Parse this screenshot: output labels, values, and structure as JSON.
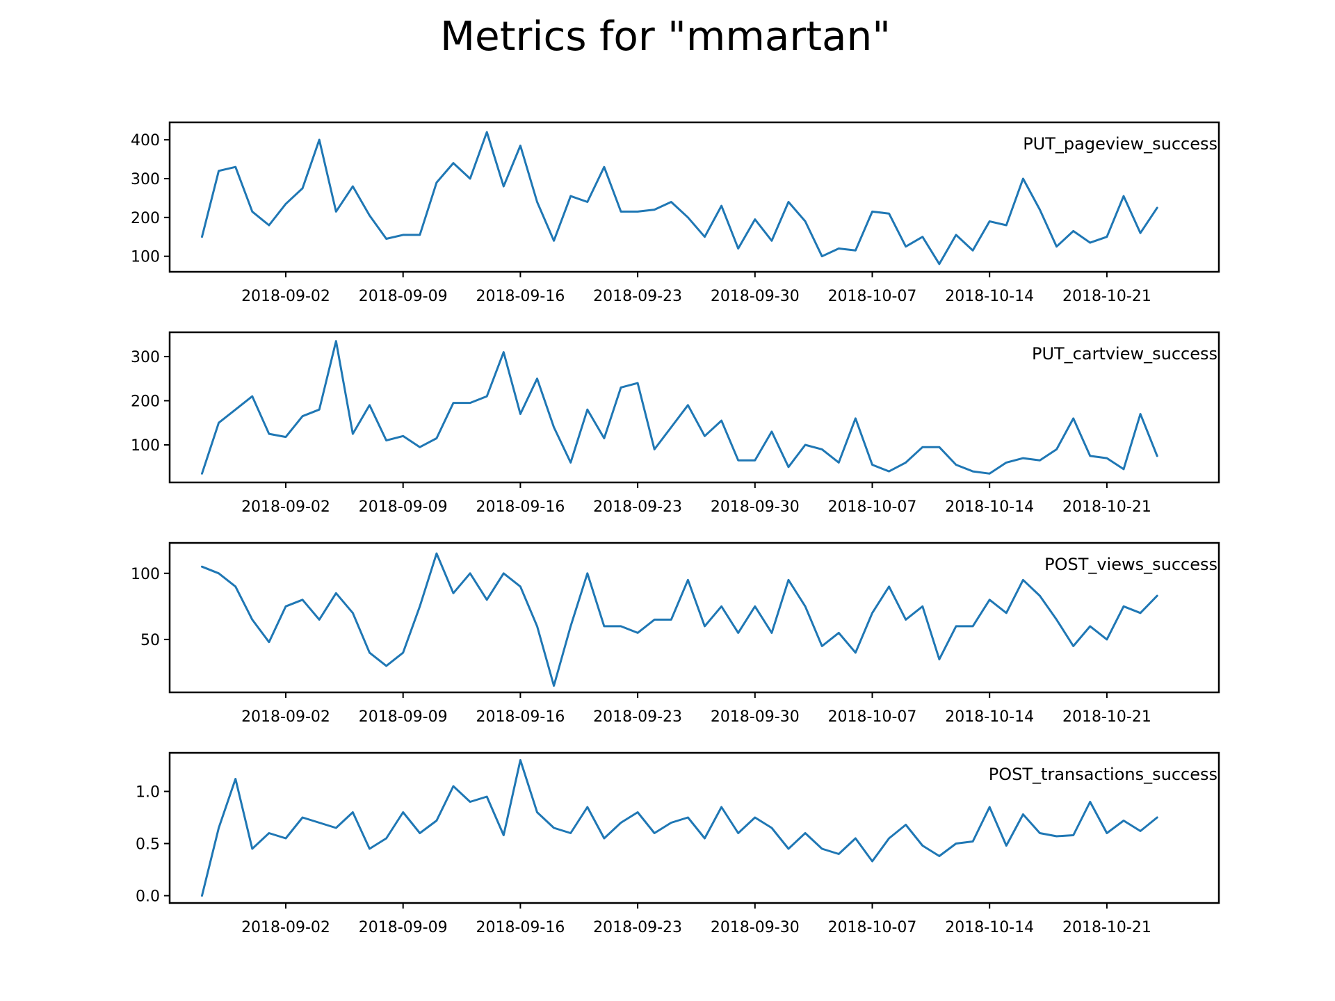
{
  "title": "Metrics for \"mmartan\"",
  "line_color": "#1f77b4",
  "chart_data": [
    {
      "type": "line",
      "series": [
        {
          "name": "PUT_pageview_success",
          "x": [
            "2018-08-28",
            "2018-08-29",
            "2018-08-30",
            "2018-08-31",
            "2018-09-01",
            "2018-09-02",
            "2018-09-03",
            "2018-09-04",
            "2018-09-05",
            "2018-09-06",
            "2018-09-07",
            "2018-09-08",
            "2018-09-09",
            "2018-09-10",
            "2018-09-11",
            "2018-09-12",
            "2018-09-13",
            "2018-09-14",
            "2018-09-15",
            "2018-09-16",
            "2018-09-17",
            "2018-09-18",
            "2018-09-19",
            "2018-09-20",
            "2018-09-21",
            "2018-09-22",
            "2018-09-23",
            "2018-09-24",
            "2018-09-25",
            "2018-09-26",
            "2018-09-27",
            "2018-09-28",
            "2018-09-29",
            "2018-09-30",
            "2018-10-01",
            "2018-10-02",
            "2018-10-03",
            "2018-10-04",
            "2018-10-05",
            "2018-10-06",
            "2018-10-07",
            "2018-10-08",
            "2018-10-09",
            "2018-10-10",
            "2018-10-11",
            "2018-10-12",
            "2018-10-13",
            "2018-10-14",
            "2018-10-15",
            "2018-10-16",
            "2018-10-17",
            "2018-10-18",
            "2018-10-19",
            "2018-10-20",
            "2018-10-21",
            "2018-10-22",
            "2018-10-23",
            "2018-10-24"
          ],
          "values": [
            150,
            320,
            330,
            215,
            180,
            235,
            275,
            400,
            215,
            280,
            205,
            145,
            155,
            155,
            290,
            340,
            300,
            420,
            280,
            385,
            240,
            140,
            255,
            240,
            330,
            215,
            215,
            220,
            240,
            200,
            150,
            230,
            120,
            195,
            140,
            240,
            190,
            100,
            120,
            115,
            215,
            210,
            125,
            150,
            80,
            155,
            115,
            190,
            180,
            300,
            220,
            125,
            165,
            135,
            150,
            255,
            160,
            225
          ]
        }
      ],
      "x_ticks": [
        "2018-09-02",
        "2018-09-09",
        "2018-09-16",
        "2018-09-23",
        "2018-09-30",
        "2018-10-07",
        "2018-10-14",
        "2018-10-21"
      ],
      "y_ticks": [
        "100",
        "200",
        "300",
        "400"
      ],
      "ylim": [
        60,
        445
      ]
    },
    {
      "type": "line",
      "series": [
        {
          "name": "PUT_cartview_success",
          "x": [
            "2018-08-28",
            "2018-08-29",
            "2018-08-30",
            "2018-08-31",
            "2018-09-01",
            "2018-09-02",
            "2018-09-03",
            "2018-09-04",
            "2018-09-05",
            "2018-09-06",
            "2018-09-07",
            "2018-09-08",
            "2018-09-09",
            "2018-09-10",
            "2018-09-11",
            "2018-09-12",
            "2018-09-13",
            "2018-09-14",
            "2018-09-15",
            "2018-09-16",
            "2018-09-17",
            "2018-09-18",
            "2018-09-19",
            "2018-09-20",
            "2018-09-21",
            "2018-09-22",
            "2018-09-23",
            "2018-09-24",
            "2018-09-25",
            "2018-09-26",
            "2018-09-27",
            "2018-09-28",
            "2018-09-29",
            "2018-09-30",
            "2018-10-01",
            "2018-10-02",
            "2018-10-03",
            "2018-10-04",
            "2018-10-05",
            "2018-10-06",
            "2018-10-07",
            "2018-10-08",
            "2018-10-09",
            "2018-10-10",
            "2018-10-11",
            "2018-10-12",
            "2018-10-13",
            "2018-10-14",
            "2018-10-15",
            "2018-10-16",
            "2018-10-17",
            "2018-10-18",
            "2018-10-19",
            "2018-10-20",
            "2018-10-21",
            "2018-10-22",
            "2018-10-23",
            "2018-10-24"
          ],
          "values": [
            35,
            150,
            180,
            210,
            125,
            118,
            165,
            180,
            335,
            125,
            190,
            110,
            120,
            95,
            115,
            195,
            195,
            210,
            310,
            170,
            250,
            140,
            60,
            180,
            115,
            230,
            240,
            90,
            140,
            190,
            120,
            155,
            65,
            65,
            130,
            50,
            100,
            90,
            60,
            160,
            55,
            40,
            60,
            95,
            95,
            55,
            40,
            35,
            60,
            70,
            65,
            90,
            160,
            75,
            70,
            45,
            170,
            75
          ]
        }
      ],
      "x_ticks": [
        "2018-09-02",
        "2018-09-09",
        "2018-09-16",
        "2018-09-23",
        "2018-09-30",
        "2018-10-07",
        "2018-10-14",
        "2018-10-21"
      ],
      "y_ticks": [
        "100",
        "200",
        "300"
      ],
      "ylim": [
        15,
        355
      ]
    },
    {
      "type": "line",
      "series": [
        {
          "name": "POST_views_success",
          "x": [
            "2018-08-28",
            "2018-08-29",
            "2018-08-30",
            "2018-08-31",
            "2018-09-01",
            "2018-09-02",
            "2018-09-03",
            "2018-09-04",
            "2018-09-05",
            "2018-09-06",
            "2018-09-07",
            "2018-09-08",
            "2018-09-09",
            "2018-09-10",
            "2018-09-11",
            "2018-09-12",
            "2018-09-13",
            "2018-09-14",
            "2018-09-15",
            "2018-09-16",
            "2018-09-17",
            "2018-09-18",
            "2018-09-19",
            "2018-09-20",
            "2018-09-21",
            "2018-09-22",
            "2018-09-23",
            "2018-09-24",
            "2018-09-25",
            "2018-09-26",
            "2018-09-27",
            "2018-09-28",
            "2018-09-29",
            "2018-09-30",
            "2018-10-01",
            "2018-10-02",
            "2018-10-03",
            "2018-10-04",
            "2018-10-05",
            "2018-10-06",
            "2018-10-07",
            "2018-10-08",
            "2018-10-09",
            "2018-10-10",
            "2018-10-11",
            "2018-10-12",
            "2018-10-13",
            "2018-10-14",
            "2018-10-15",
            "2018-10-16",
            "2018-10-17",
            "2018-10-18",
            "2018-10-19",
            "2018-10-20",
            "2018-10-21",
            "2018-10-22",
            "2018-10-23",
            "2018-10-24"
          ],
          "values": [
            105,
            100,
            90,
            65,
            48,
            75,
            80,
            65,
            85,
            70,
            40,
            30,
            40,
            75,
            115,
            85,
            100,
            80,
            100,
            90,
            60,
            15,
            60,
            100,
            60,
            60,
            55,
            65,
            65,
            95,
            60,
            75,
            55,
            75,
            55,
            95,
            75,
            45,
            55,
            40,
            70,
            90,
            65,
            75,
            35,
            60,
            60,
            80,
            70,
            95,
            83,
            65,
            45,
            60,
            50,
            75,
            70,
            83
          ]
        }
      ],
      "x_ticks": [
        "2018-09-02",
        "2018-09-09",
        "2018-09-16",
        "2018-09-23",
        "2018-09-30",
        "2018-10-07",
        "2018-10-14",
        "2018-10-21"
      ],
      "y_ticks": [
        "50",
        "100"
      ],
      "ylim": [
        10,
        123
      ]
    },
    {
      "type": "line",
      "series": [
        {
          "name": "POST_transactions_success",
          "x": [
            "2018-08-28",
            "2018-08-29",
            "2018-08-30",
            "2018-08-31",
            "2018-09-01",
            "2018-09-02",
            "2018-09-03",
            "2018-09-04",
            "2018-09-05",
            "2018-09-06",
            "2018-09-07",
            "2018-09-08",
            "2018-09-09",
            "2018-09-10",
            "2018-09-11",
            "2018-09-12",
            "2018-09-13",
            "2018-09-14",
            "2018-09-15",
            "2018-09-16",
            "2018-09-17",
            "2018-09-18",
            "2018-09-19",
            "2018-09-20",
            "2018-09-21",
            "2018-09-22",
            "2018-09-23",
            "2018-09-24",
            "2018-09-25",
            "2018-09-26",
            "2018-09-27",
            "2018-09-28",
            "2018-09-29",
            "2018-09-30",
            "2018-10-01",
            "2018-10-02",
            "2018-10-03",
            "2018-10-04",
            "2018-10-05",
            "2018-10-06",
            "2018-10-07",
            "2018-10-08",
            "2018-10-09",
            "2018-10-10",
            "2018-10-11",
            "2018-10-12",
            "2018-10-13",
            "2018-10-14",
            "2018-10-15",
            "2018-10-16",
            "2018-10-17",
            "2018-10-18",
            "2018-10-19",
            "2018-10-20",
            "2018-10-21",
            "2018-10-22",
            "2018-10-23",
            "2018-10-24"
          ],
          "values": [
            0.0,
            0.65,
            1.12,
            0.45,
            0.6,
            0.55,
            0.75,
            0.7,
            0.65,
            0.8,
            0.45,
            0.55,
            0.8,
            0.6,
            0.72,
            1.05,
            0.9,
            0.95,
            0.58,
            1.3,
            0.8,
            0.65,
            0.6,
            0.85,
            0.55,
            0.7,
            0.8,
            0.6,
            0.7,
            0.75,
            0.55,
            0.85,
            0.6,
            0.75,
            0.65,
            0.45,
            0.6,
            0.45,
            0.4,
            0.55,
            0.33,
            0.55,
            0.68,
            0.48,
            0.38,
            0.5,
            0.52,
            0.85,
            0.48,
            0.78,
            0.6,
            0.57,
            0.58,
            0.9,
            0.6,
            0.72,
            0.62,
            0.75
          ]
        }
      ],
      "x_ticks": [
        "2018-09-02",
        "2018-09-09",
        "2018-09-16",
        "2018-09-23",
        "2018-09-30",
        "2018-10-07",
        "2018-10-14",
        "2018-10-21"
      ],
      "y_ticks": [
        "0.0",
        "0.5",
        "1.0"
      ],
      "ylim": [
        -0.07,
        1.37
      ]
    }
  ]
}
